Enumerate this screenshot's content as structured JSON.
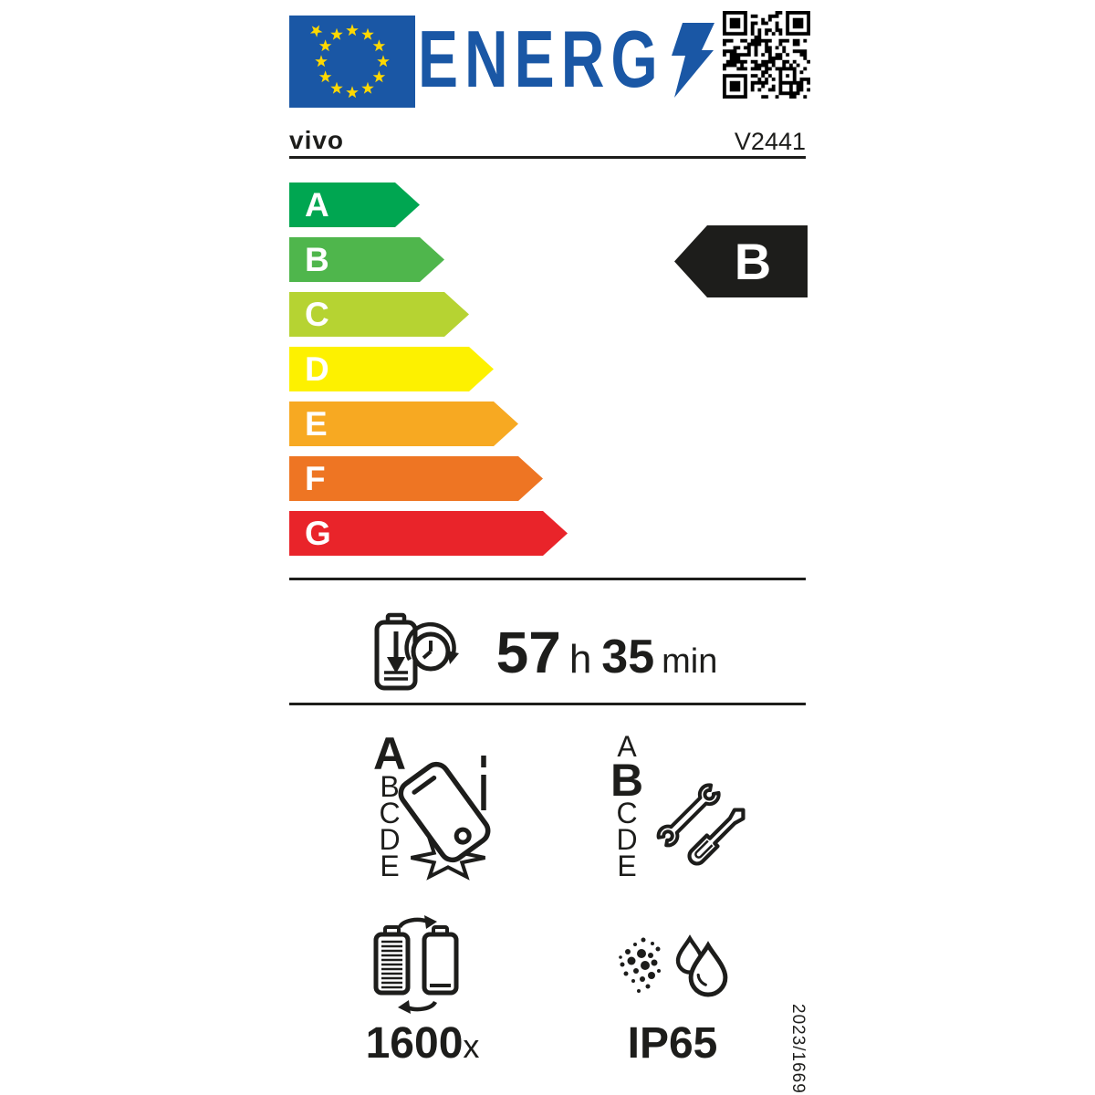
{
  "label": {
    "logo_text": "ENERG",
    "brand": "vivo",
    "model": "V2441",
    "energy_scale": {
      "classes": [
        {
          "label": "A",
          "color": "#00a651"
        },
        {
          "label": "B",
          "color": "#4fb64c"
        },
        {
          "label": "C",
          "color": "#b6d332"
        },
        {
          "label": "D",
          "color": "#fdf100"
        },
        {
          "label": "E",
          "color": "#f7a922"
        },
        {
          "label": "F",
          "color": "#ee7523"
        },
        {
          "label": "G",
          "color": "#e9242a"
        }
      ],
      "rated_class": "B",
      "rated_color": "#1d1d1b"
    },
    "battery_endurance": {
      "hours": "57",
      "hours_unit": "h",
      "minutes": "35",
      "minutes_unit": "min"
    },
    "free_fall": {
      "scale": [
        "A",
        "B",
        "C",
        "D",
        "E"
      ],
      "rated": "A"
    },
    "repairability": {
      "scale": [
        "A",
        "B",
        "C",
        "D",
        "E"
      ],
      "rated": "B"
    },
    "battery_cycles": {
      "value": "1600",
      "unit": "x"
    },
    "ingress_protection": "IP65",
    "regulation": "2023/1669",
    "colors": {
      "eu_blue": "#1a57a5",
      "star_yellow": "#ffd800",
      "black": "#1d1d1b"
    }
  }
}
